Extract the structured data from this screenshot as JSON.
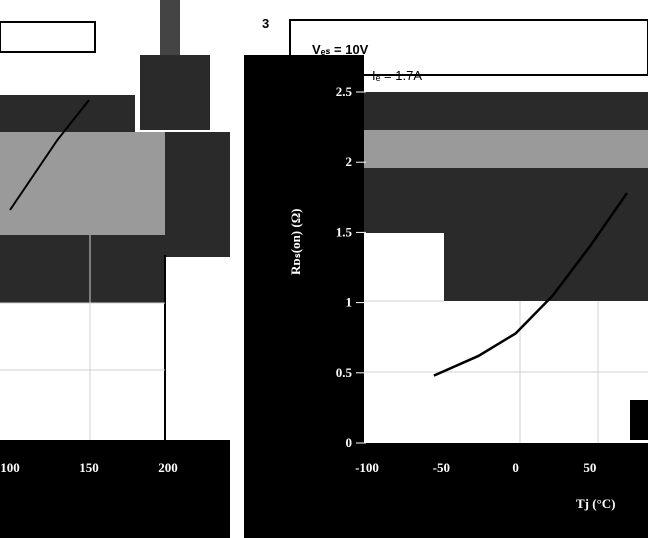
{
  "chart_data": [
    {
      "type": "line",
      "panel": "left-partial",
      "xlabel": "",
      "ylabel": "",
      "x_ticks": [
        "100",
        "150",
        "200"
      ],
      "series": [
        {
          "x": [
            100,
            130,
            150
          ],
          "y": [
            1.35,
            2.05,
            2.45
          ]
        }
      ],
      "grid": true
    },
    {
      "type": "line",
      "panel": "right",
      "annotation_value": "3",
      "condition_1": "Vₑₛ = 10V",
      "condition_2": "Iₑ = 1.7A",
      "ylabel": "Rᴅₛ(on) (Ω)",
      "xlabel": "Tj (°C)",
      "y_ticks": [
        "0",
        "0.5",
        "1",
        "1.5",
        "2",
        "2.5"
      ],
      "x_ticks": [
        "-100",
        "-50",
        "0",
        "50"
      ],
      "xlim": [
        -100,
        75
      ],
      "ylim": [
        0,
        3
      ],
      "grid": true,
      "series": [
        {
          "x": [
            -55,
            -25,
            0,
            25,
            50,
            75
          ],
          "y": [
            0.48,
            0.62,
            0.78,
            1.05,
            1.4,
            1.78
          ]
        }
      ]
    }
  ],
  "colors": {
    "panel_dark": "#2a2a2a",
    "panel_gray": "#9a9a9a",
    "grid_light": "#d0d0d0",
    "curve": "#000000"
  }
}
